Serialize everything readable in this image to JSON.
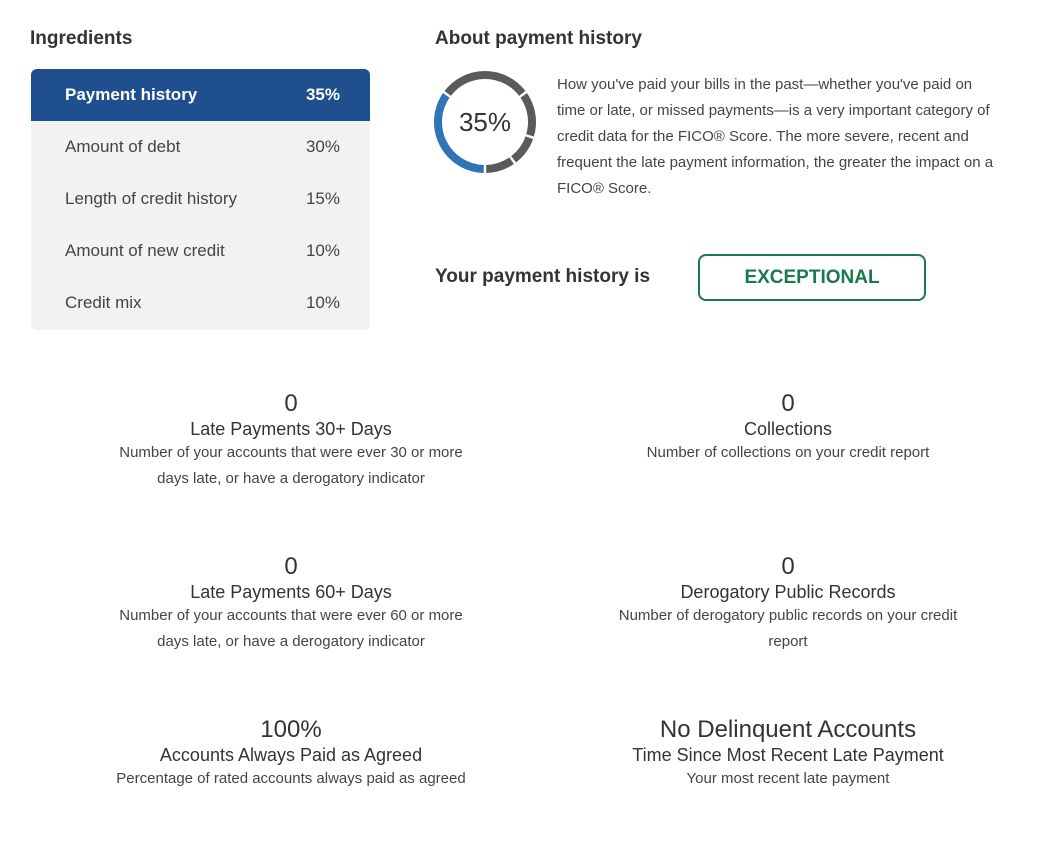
{
  "ingredients": {
    "title": "Ingredients",
    "items": [
      {
        "label": "Payment history",
        "value": "35%",
        "active": true
      },
      {
        "label": "Amount of debt",
        "value": "30%"
      },
      {
        "label": "Length of credit history",
        "value": "15%"
      },
      {
        "label": "Amount of new credit",
        "value": "10%"
      },
      {
        "label": "Credit mix",
        "value": "10%"
      }
    ]
  },
  "about": {
    "title": "About payment history",
    "donut_label": "35%",
    "donut_segments": [
      35,
      30,
      15,
      10,
      10
    ],
    "colors": {
      "active": "#2f74b8",
      "inactive": "#5a5a5a"
    },
    "description": "How you've paid your bills in the past—whether you've paid on time or late, or missed payments—is a very important category of credit data for the FICO® Score. The more severe, recent and frequent the late payment information, the greater the impact on a FICO® Score.",
    "verdict_label": "Your payment history is",
    "verdict": "EXCEPTIONAL",
    "verdict_color": "#1a7a4c"
  },
  "stats": [
    {
      "value": "0",
      "title": "Late Payments 30+ Days",
      "desc": "Number of your accounts that were ever 30 or more days late, or have a derogatory indicator"
    },
    {
      "value": "0",
      "title": "Collections",
      "desc": "Number of collections on your credit report"
    },
    {
      "value": "0",
      "title": "Late Payments 60+ Days",
      "desc": "Number of your accounts that were ever 60 or more days late, or have a derogatory indicator"
    },
    {
      "value": "0",
      "title": "Derogatory Public Records",
      "desc": "Number of derogatory public records on your credit report"
    },
    {
      "value": "100%",
      "title": "Accounts Always Paid as Agreed",
      "desc": "Percentage of rated accounts always paid as agreed"
    },
    {
      "value": "No Delinquent Accounts",
      "title": "Time Since Most Recent Late Payment",
      "desc": "Your most recent late payment"
    }
  ]
}
